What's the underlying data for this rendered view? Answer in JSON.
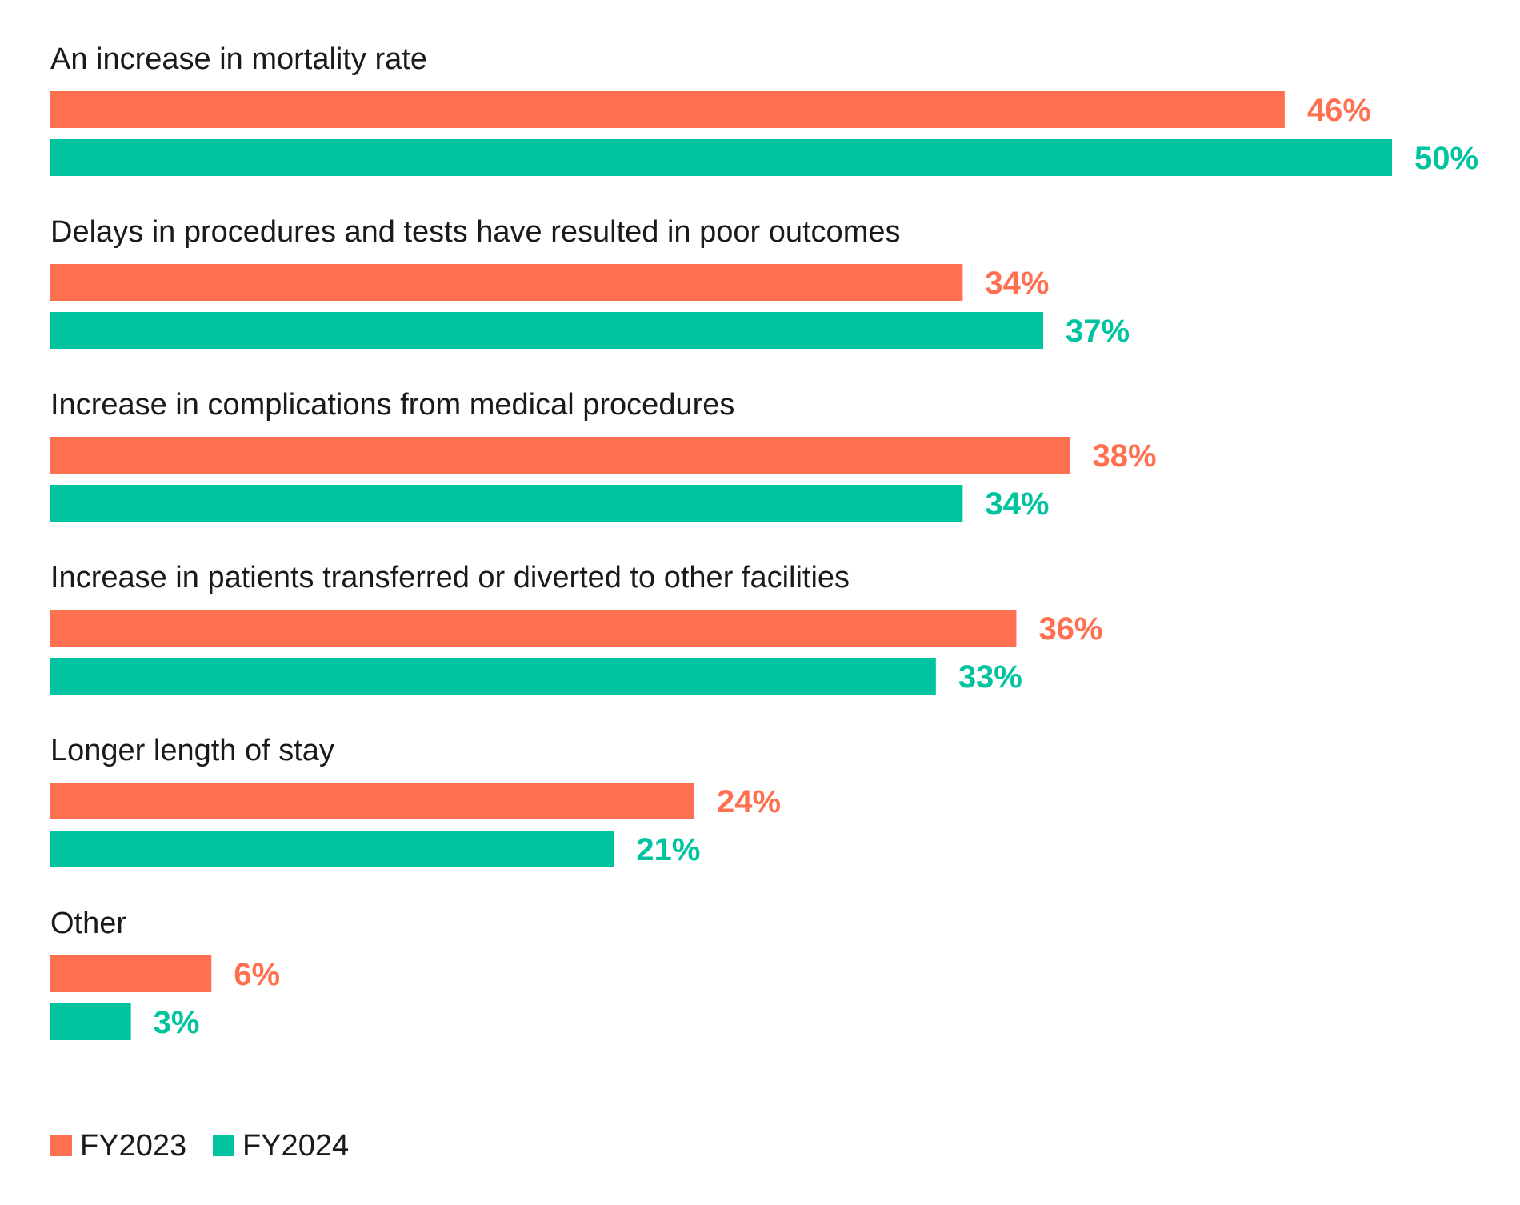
{
  "chart_data": {
    "type": "bar",
    "orientation": "horizontal",
    "title": "",
    "xlabel": "",
    "ylabel": "",
    "xlim": [
      0,
      50
    ],
    "grid": false,
    "legend_position": "bottom-left",
    "value_suffix": "%",
    "categories": [
      "An increase in mortality rate",
      "Delays in procedures and tests have resulted in poor outcomes",
      "Increase in complications from medical procedures",
      "Increase in patients transferred or diverted to other facilities",
      "Longer length of stay",
      "Other"
    ],
    "series": [
      {
        "name": "FY2023",
        "color": "#ff7050",
        "values": [
          46,
          34,
          38,
          36,
          24,
          6
        ]
      },
      {
        "name": "FY2024",
        "color": "#00c4a0",
        "values": [
          50,
          37,
          34,
          33,
          21,
          3
        ]
      }
    ]
  }
}
